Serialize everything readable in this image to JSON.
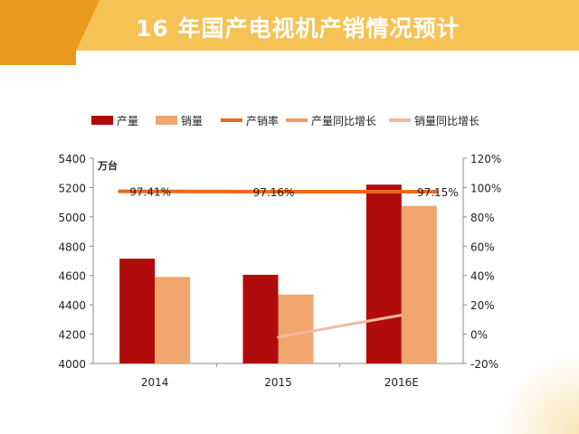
{
  "title": "16 年国产电视机产销情况预计",
  "colors": {
    "banner_main": "#f2b134",
    "banner_light": "#f7cf6e",
    "banner_dark": "#e89a1c",
    "production": "#b00c0c",
    "sales": "#f0a66c",
    "rate": "#ee6a1a",
    "prod_growth": "#f19a68",
    "sales_growth": "#f3b8a4"
  },
  "chart_data": {
    "type": "bar",
    "categories": [
      "2014",
      "2015",
      "2016E"
    ],
    "unit_left": "万台",
    "ylim_left": [
      4000,
      5400
    ],
    "ylim_right": [
      -20,
      120
    ],
    "left_ticks": [
      "5400",
      "5200",
      "5000",
      "4800",
      "4600",
      "4400",
      "4200",
      "4000"
    ],
    "right_ticks": [
      "120%",
      "100%",
      "80%",
      "60%",
      "40%",
      "20%",
      "0%",
      "-20%"
    ],
    "grid": false,
    "legend_position": "top",
    "series": [
      {
        "name": "产量",
        "kind": "bar",
        "axis": "left",
        "color": "#b00c0c",
        "values": [
          4715,
          4605,
          5220
        ]
      },
      {
        "name": "销量",
        "kind": "bar",
        "axis": "left",
        "color": "#f0a66c",
        "values": [
          4590,
          4470,
          5075
        ]
      },
      {
        "name": "产销率",
        "kind": "line",
        "axis": "right",
        "color": "#ee6a1a",
        "values": [
          97.41,
          97.16,
          97.15
        ]
      },
      {
        "name": "产量同比增长",
        "kind": "line",
        "axis": "right",
        "color": "#f19a68",
        "values": [
          null,
          null,
          null
        ]
      },
      {
        "name": "销量同比增长",
        "kind": "line",
        "axis": "right",
        "color": "#f3b8a4",
        "values": [
          null,
          -2,
          13
        ]
      }
    ],
    "rate_labels": [
      "97.41%",
      "97.16%",
      "97.15%"
    ]
  }
}
